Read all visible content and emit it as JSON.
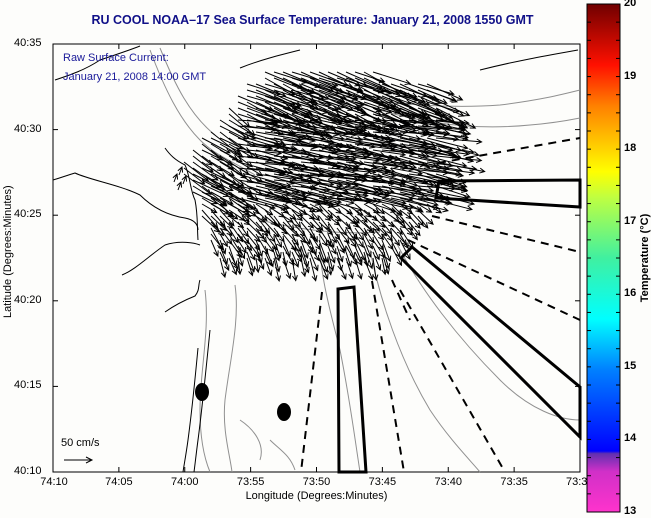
{
  "title": "RU COOL  NOAA–17  Sea Surface Temperature:  January 21, 2008 1550 GMT",
  "overlay": {
    "line1": "Raw Surface Current:",
    "line2": "January 21, 2008 14:00 GMT",
    "scale_label": "50 cm/s"
  },
  "axes": {
    "xlabel": "Longitude (Degrees:Minutes)",
    "ylabel": "Latitude (Degrees:Minutes)",
    "x_ticks": [
      "74:10",
      "74:05",
      "74:00",
      "73:55",
      "73:50",
      "73:45",
      "73:40",
      "73:35",
      "73:3"
    ],
    "y_ticks": [
      "40:35",
      "40:30",
      "40:25",
      "40:20",
      "40:15",
      "40:10"
    ]
  },
  "colorbar": {
    "label": "Temperature (°C)",
    "ticks": [
      "20",
      "19",
      "18",
      "17",
      "16",
      "15",
      "14",
      "13"
    ],
    "min": 13,
    "max": 20,
    "colors": [
      "#ff33cc",
      "#0000ff",
      "#00a0ff",
      "#00ffff",
      "#40f0a0",
      "#c0ff40",
      "#ffff00",
      "#ff8000",
      "#ff0000",
      "#700000"
    ]
  },
  "map_features": {
    "stations": 2,
    "exclusion_zones": 3,
    "dashed_channels": 7
  }
}
